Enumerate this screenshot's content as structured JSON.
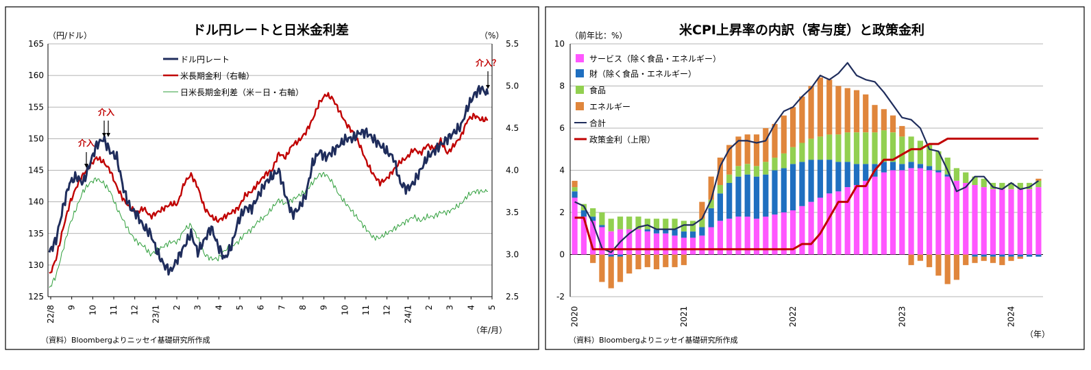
{
  "chart_data": [
    {
      "type": "line",
      "title": "ドル円レートと日米金利差",
      "unit_left": "（円/ドル）",
      "unit_right": "（%）",
      "x_unit": "（年/月）",
      "source": "（資料）Bloombergよりニッセイ基礎研究所作成",
      "x_ticks": [
        "22/8",
        "9",
        "10",
        "11",
        "12",
        "23/1",
        "2",
        "3",
        "4",
        "5",
        "6",
        "7",
        "8",
        "9",
        "10",
        "11",
        "12",
        "24/1",
        "2",
        "3",
        "4",
        "5"
      ],
      "ylim_left": [
        125,
        165
      ],
      "yticks_left": [
        125,
        130,
        135,
        140,
        145,
        150,
        155,
        160,
        165
      ],
      "ylim_right": [
        2.5,
        5.5
      ],
      "yticks_right": [
        "2.5",
        "3.0",
        "3.5",
        "4.0",
        "4.5",
        "5.0",
        "5.5"
      ],
      "colors": {
        "usdjpy": "#1f2d5c",
        "us10y": "#c00000",
        "spread": "#2e9e3a"
      },
      "series": [
        {
          "name": "ドル円レート",
          "axis": "left",
          "values": [
            132,
            134,
            139,
            143,
            144,
            143,
            146,
            149,
            150,
            148,
            147,
            142,
            139,
            138,
            136,
            135,
            132,
            130,
            129,
            131,
            133,
            135,
            132,
            134,
            136,
            133,
            131,
            133,
            137,
            139,
            139,
            141,
            143,
            144,
            145,
            141,
            138,
            139,
            141,
            146,
            148,
            147,
            148,
            149,
            150,
            150,
            151,
            151,
            150,
            149,
            148,
            147,
            143,
            142,
            143,
            145,
            147,
            148,
            149,
            150,
            151,
            152,
            155,
            157,
            158,
            157
          ]
        },
        {
          "name": "米長期金利（右軸）",
          "axis": "right",
          "values": [
            2.75,
            2.95,
            3.3,
            3.6,
            3.8,
            3.95,
            4.05,
            4.15,
            4.1,
            4.0,
            3.8,
            3.65,
            3.55,
            3.5,
            3.55,
            3.45,
            3.5,
            3.55,
            3.6,
            3.6,
            3.85,
            3.95,
            3.8,
            3.55,
            3.45,
            3.4,
            3.45,
            3.5,
            3.55,
            3.7,
            3.75,
            3.85,
            3.95,
            4.0,
            4.2,
            4.15,
            4.3,
            4.35,
            4.45,
            4.6,
            4.8,
            4.9,
            4.85,
            4.7,
            4.55,
            4.45,
            4.3,
            4.1,
            3.95,
            3.85,
            3.9,
            4.0,
            4.1,
            4.15,
            4.25,
            4.2,
            4.3,
            4.25,
            4.35,
            4.2,
            4.3,
            4.4,
            4.6,
            4.65,
            4.6,
            4.6
          ]
        },
        {
          "name": "日米長期金利差（米－日・右軸）",
          "axis": "right",
          "values": [
            2.6,
            2.75,
            3.05,
            3.35,
            3.55,
            3.75,
            3.85,
            3.9,
            3.85,
            3.75,
            3.55,
            3.4,
            3.25,
            3.15,
            3.1,
            3.0,
            3.05,
            3.1,
            3.15,
            3.15,
            3.3,
            3.35,
            3.2,
            3.0,
            2.95,
            2.95,
            3.05,
            3.1,
            3.15,
            3.25,
            3.3,
            3.4,
            3.45,
            3.55,
            3.65,
            3.6,
            3.65,
            3.7,
            3.75,
            3.85,
            3.95,
            3.95,
            3.85,
            3.7,
            3.6,
            3.5,
            3.4,
            3.3,
            3.2,
            3.2,
            3.25,
            3.3,
            3.35,
            3.4,
            3.45,
            3.4,
            3.45,
            3.45,
            3.5,
            3.5,
            3.55,
            3.6,
            3.7,
            3.75,
            3.75,
            3.75
          ]
        }
      ],
      "annotations": [
        {
          "text": "介入",
          "type": "arrow",
          "x_index": 19
        },
        {
          "text": "介入",
          "type": "double-arrow",
          "x_index": 27
        },
        {
          "text": "介入？",
          "type": "arrow",
          "x_index": 92
        }
      ]
    },
    {
      "type": "bar",
      "title": "米CPI上昇率の内訳（寄与度）と政策金利",
      "unit": "（前年比：%）",
      "x_unit": "（年）",
      "source": "（資料）Bloombergよりニッセイ基礎研究所作成",
      "ylim": [
        -2,
        10
      ],
      "yticks": [
        "-2",
        "0",
        "2",
        "4",
        "6",
        "8",
        "10"
      ],
      "year_ticks": [
        "2020",
        "2021",
        "2022",
        "2023",
        "2024"
      ],
      "colors": {
        "services": "#ff57ff",
        "goods": "#1f6fc0",
        "food": "#92d050",
        "energy": "#e0863c",
        "total": "#1f2d5c",
        "policy": "#c00000"
      },
      "series": [
        {
          "name": "サービス（除く食品・エネルギー）",
          "values": [
            2.7,
            1.8,
            1.6,
            1.3,
            1.1,
            1.2,
            1.2,
            1.2,
            1.1,
            1.0,
            1.0,
            0.9,
            0.8,
            0.8,
            0.9,
            1.3,
            1.6,
            1.7,
            1.8,
            1.8,
            1.7,
            1.8,
            1.9,
            2.0,
            2.1,
            2.3,
            2.5,
            2.7,
            2.9,
            3.0,
            3.2,
            3.3,
            3.5,
            3.7,
            3.9,
            4.0,
            4.0,
            4.1,
            4.1,
            4.0,
            3.9,
            3.7,
            3.5,
            3.4,
            3.3,
            3.2,
            3.1,
            3.1,
            3.1,
            3.1,
            3.1,
            3.2
          ]
        },
        {
          "name": "財（除く食品・エネルギー）",
          "values": [
            0.3,
            0.3,
            0.2,
            0.1,
            -0.1,
            -0.1,
            0.0,
            0.0,
            0.1,
            0.2,
            0.2,
            0.3,
            0.3,
            0.3,
            0.4,
            0.9,
            1.3,
            1.7,
            1.9,
            2.0,
            2.0,
            2.0,
            2.1,
            2.1,
            2.2,
            2.1,
            2.0,
            1.8,
            1.6,
            1.4,
            1.2,
            1.0,
            0.8,
            0.6,
            0.5,
            0.4,
            0.3,
            0.3,
            0.2,
            0.2,
            0.1,
            0.1,
            0.0,
            0.0,
            -0.1,
            -0.1,
            -0.1,
            -0.1,
            -0.1,
            -0.1,
            -0.1,
            -0.1
          ]
        },
        {
          "name": "食品",
          "values": [
            0.2,
            0.3,
            0.4,
            0.6,
            0.6,
            0.6,
            0.6,
            0.6,
            0.5,
            0.5,
            0.5,
            0.5,
            0.5,
            0.5,
            0.4,
            0.4,
            0.4,
            0.4,
            0.5,
            0.5,
            0.5,
            0.6,
            0.6,
            0.7,
            0.8,
            0.9,
            1.0,
            1.1,
            1.2,
            1.3,
            1.4,
            1.5,
            1.5,
            1.5,
            1.5,
            1.4,
            1.3,
            1.2,
            1.1,
            1.0,
            0.9,
            0.8,
            0.6,
            0.5,
            0.4,
            0.4,
            0.3,
            0.3,
            0.3,
            0.3,
            0.3,
            0.3
          ]
        },
        {
          "name": "エネルギー",
          "values": [
            0.3,
            0.0,
            -0.4,
            -1.3,
            -1.5,
            -1.2,
            -0.9,
            -0.7,
            -0.6,
            -0.7,
            -0.6,
            -0.6,
            -0.5,
            0.0,
            0.8,
            1.1,
            1.3,
            1.4,
            1.4,
            1.4,
            1.5,
            1.6,
            1.6,
            1.8,
            1.9,
            2.2,
            2.5,
            2.8,
            2.6,
            2.3,
            2.1,
            2.0,
            1.8,
            1.3,
            1.0,
            0.8,
            0.5,
            -0.5,
            -0.3,
            -0.6,
            -1.0,
            -1.4,
            -1.2,
            -0.5,
            -0.3,
            -0.2,
            -0.3,
            -0.4,
            -0.2,
            -0.1,
            0.0,
            0.1
          ]
        },
        {
          "name": "合計",
          "values": [
            2.5,
            2.3,
            1.5,
            0.3,
            0.1,
            0.6,
            1.0,
            1.3,
            1.4,
            1.2,
            1.2,
            1.2,
            1.4,
            1.4,
            1.7,
            2.6,
            4.2,
            5.0,
            5.4,
            5.4,
            5.3,
            5.4,
            6.2,
            6.8,
            7.0,
            7.5,
            7.9,
            8.5,
            8.3,
            8.6,
            9.1,
            8.5,
            8.3,
            8.2,
            7.7,
            7.1,
            6.5,
            6.4,
            6.0,
            5.0,
            4.9,
            4.0,
            3.0,
            3.2,
            3.7,
            3.7,
            3.2,
            3.1,
            3.4,
            3.1,
            3.2,
            3.5
          ]
        },
        {
          "name": "政策金利（上限）",
          "values": [
            1.75,
            1.75,
            0.25,
            0.25,
            0.25,
            0.25,
            0.25,
            0.25,
            0.25,
            0.25,
            0.25,
            0.25,
            0.25,
            0.25,
            0.25,
            0.25,
            0.25,
            0.25,
            0.25,
            0.25,
            0.25,
            0.25,
            0.25,
            0.25,
            0.25,
            0.5,
            0.5,
            1.0,
            1.75,
            2.5,
            2.5,
            3.25,
            3.25,
            4.0,
            4.5,
            4.5,
            4.75,
            5.0,
            5.0,
            5.25,
            5.25,
            5.5,
            5.5,
            5.5,
            5.5,
            5.5,
            5.5,
            5.5,
            5.5,
            5.5,
            5.5,
            5.5
          ]
        }
      ]
    }
  ]
}
